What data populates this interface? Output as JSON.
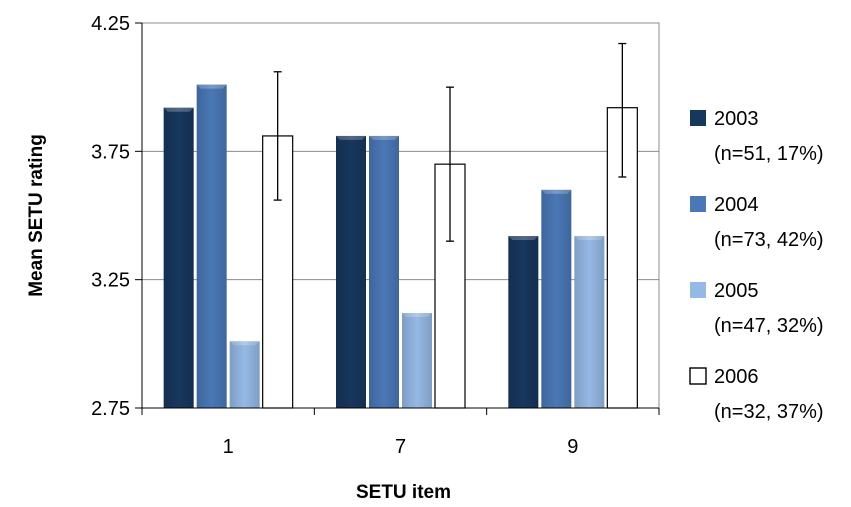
{
  "chart_data": {
    "type": "bar",
    "xlabel": "SETU item",
    "ylabel": "Mean SETU rating",
    "ylim": [
      2.75,
      4.25
    ],
    "yticks": [
      "2.75",
      "3.25",
      "3.75",
      "4.25"
    ],
    "categories": [
      "1",
      "7",
      "9"
    ],
    "grid": true,
    "legend_position": "right",
    "series": [
      {
        "name": "2003",
        "name_detail": "(n=51, 17%)",
        "color": "#17375e",
        "values": [
          3.92,
          3.81,
          3.42
        ],
        "error": null
      },
      {
        "name": "2004",
        "name_detail": "(n=73, 42%)",
        "color": "#4a78b6",
        "values": [
          4.01,
          3.81,
          3.6
        ],
        "error": null
      },
      {
        "name": "2005",
        "name_detail": "(n=47, 32%)",
        "color": "#95b9e5",
        "values": [
          3.01,
          3.12,
          3.42
        ],
        "error": null
      },
      {
        "name": "2006",
        "name_detail": "(n=32, 37%)",
        "color": "#ffffff",
        "values": [
          3.81,
          3.7,
          3.92
        ],
        "error": [
          [
            3.56,
            4.06
          ],
          [
            3.4,
            4.0
          ],
          [
            3.65,
            4.17
          ]
        ]
      }
    ]
  }
}
